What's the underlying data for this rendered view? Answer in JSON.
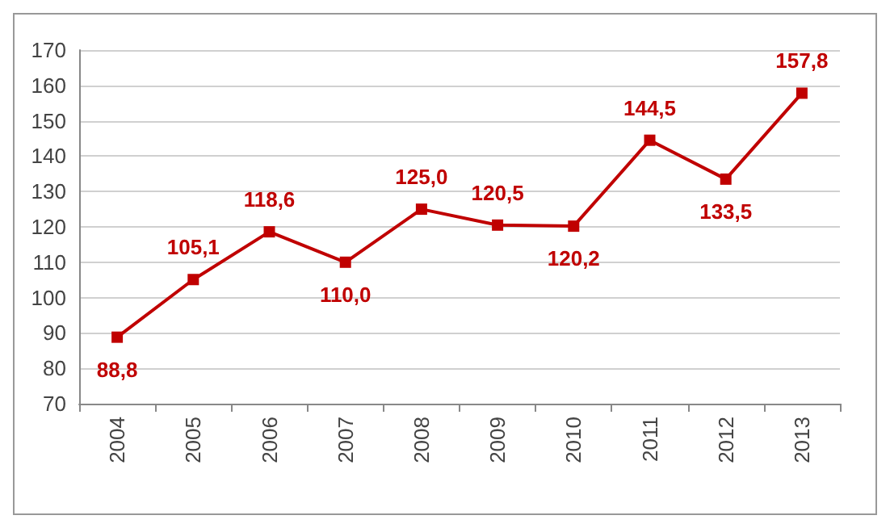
{
  "chart_data": {
    "type": "line",
    "categories": [
      "2004",
      "2005",
      "2006",
      "2007",
      "2008",
      "2009",
      "2010",
      "2011",
      "2012",
      "2013"
    ],
    "series": [
      {
        "color": "#c00000",
        "values": [
          88.8,
          105.1,
          118.6,
          110.0,
          125.0,
          120.5,
          120.2,
          144.5,
          133.5,
          157.8
        ],
        "value_labels": [
          "88,8",
          "105,1",
          "118,6",
          "110,0",
          "125,0",
          "120,5",
          "120,2",
          "144,5",
          "133,5",
          "157,8"
        ]
      }
    ],
    "ylim": [
      70,
      170
    ],
    "yticks": [
      70,
      80,
      90,
      100,
      110,
      120,
      130,
      140,
      150,
      160,
      170
    ],
    "grid": "y",
    "marker": "square",
    "line_style": "solid"
  }
}
